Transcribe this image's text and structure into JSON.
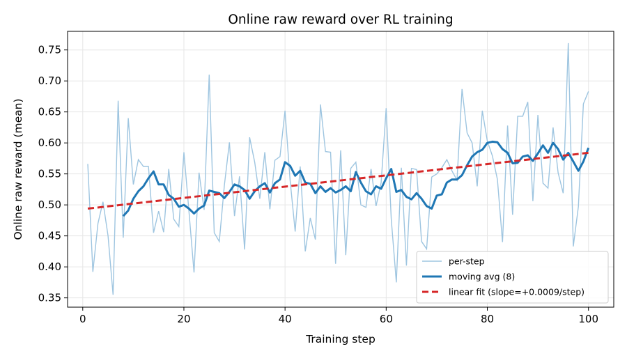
{
  "chart_data": {
    "type": "line",
    "title": "Online raw reward over RL training",
    "xlabel": "Training step",
    "ylabel": "Online raw reward (mean)",
    "xlim": [
      -3,
      105
    ],
    "ylim": [
      0.335,
      0.78
    ],
    "xticks": [
      0,
      20,
      40,
      60,
      80,
      100
    ],
    "yticks": [
      0.35,
      0.4,
      0.45,
      0.5,
      0.55,
      0.6,
      0.65,
      0.7,
      0.75
    ],
    "grid": true,
    "legend_position": "lower-right",
    "colors": {
      "per_step": "#9ec5e0",
      "moving_avg": "#1f77b4",
      "fit": "#d62728"
    },
    "series": [
      {
        "name": "per-step",
        "style": "thin-line",
        "x": [
          1,
          2,
          3,
          4,
          5,
          6,
          7,
          8,
          9,
          10,
          11,
          12,
          13,
          14,
          15,
          16,
          17,
          18,
          19,
          20,
          21,
          22,
          23,
          24,
          25,
          26,
          27,
          28,
          29,
          30,
          31,
          32,
          33,
          34,
          35,
          36,
          37,
          38,
          39,
          40,
          41,
          42,
          43,
          44,
          45,
          46,
          47,
          48,
          49,
          50,
          51,
          52,
          53,
          54,
          55,
          56,
          57,
          58,
          59,
          60,
          61,
          62,
          63,
          64,
          65,
          66,
          67,
          68,
          69,
          70,
          71,
          72,
          73,
          74,
          75,
          76,
          77,
          78,
          79,
          80,
          81,
          82,
          83,
          84,
          85,
          86,
          87,
          88,
          89,
          90,
          91,
          92,
          93,
          94,
          95,
          96,
          97,
          98,
          99,
          100
        ],
        "values": [
          0.566,
          0.392,
          0.47,
          0.505,
          0.45,
          0.355,
          0.668,
          0.447,
          0.64,
          0.533,
          0.573,
          0.562,
          0.562,
          0.455,
          0.49,
          0.456,
          0.558,
          0.477,
          0.465,
          0.585,
          0.49,
          0.391,
          0.552,
          0.492,
          0.71,
          0.455,
          0.441,
          0.531,
          0.601,
          0.482,
          0.546,
          0.428,
          0.609,
          0.569,
          0.51,
          0.585,
          0.493,
          0.572,
          0.578,
          0.652,
          0.54,
          0.457,
          0.562,
          0.425,
          0.479,
          0.444,
          0.662,
          0.586,
          0.585,
          0.405,
          0.588,
          0.419,
          0.559,
          0.569,
          0.5,
          0.496,
          0.558,
          0.498,
          0.536,
          0.656,
          0.477,
          0.375,
          0.56,
          0.402,
          0.559,
          0.557,
          0.441,
          0.429,
          0.545,
          0.55,
          0.56,
          0.573,
          0.555,
          0.54,
          0.687,
          0.616,
          0.6,
          0.53,
          0.652,
          0.603,
          0.579,
          0.541,
          0.44,
          0.628,
          0.484,
          0.643,
          0.643,
          0.666,
          0.506,
          0.645,
          0.535,
          0.527,
          0.625,
          0.552,
          0.519,
          0.761,
          0.433,
          0.497,
          0.663,
          0.683
        ]
      },
      {
        "name": "moving avg (8)",
        "style": "thick-line",
        "x": [
          8,
          9,
          10,
          11,
          12,
          13,
          14,
          15,
          16,
          17,
          18,
          19,
          20,
          21,
          22,
          23,
          24,
          25,
          26,
          27,
          28,
          29,
          30,
          31,
          32,
          33,
          34,
          35,
          36,
          37,
          38,
          39,
          40,
          41,
          42,
          43,
          44,
          45,
          46,
          47,
          48,
          49,
          50,
          51,
          52,
          53,
          54,
          55,
          56,
          57,
          58,
          59,
          60,
          61,
          62,
          63,
          64,
          65,
          66,
          67,
          68,
          69,
          70,
          71,
          72,
          73,
          74,
          75,
          76,
          77,
          78,
          79,
          80,
          81,
          82,
          83,
          84,
          85,
          86,
          87,
          88,
          89,
          90,
          91,
          92,
          93,
          94,
          95,
          96,
          97,
          98,
          99,
          100
        ],
        "values": [
          0.482,
          0.491,
          0.51,
          0.522,
          0.53,
          0.543,
          0.554,
          0.533,
          0.533,
          0.516,
          0.51,
          0.497,
          0.5,
          0.494,
          0.486,
          0.494,
          0.499,
          0.523,
          0.521,
          0.519,
          0.511,
          0.521,
          0.533,
          0.53,
          0.524,
          0.51,
          0.522,
          0.53,
          0.535,
          0.52,
          0.535,
          0.541,
          0.569,
          0.563,
          0.547,
          0.555,
          0.536,
          0.534,
          0.519,
          0.53,
          0.521,
          0.527,
          0.52,
          0.524,
          0.53,
          0.522,
          0.553,
          0.536,
          0.522,
          0.517,
          0.53,
          0.526,
          0.543,
          0.558,
          0.521,
          0.524,
          0.513,
          0.509,
          0.519,
          0.51,
          0.498,
          0.494,
          0.515,
          0.517,
          0.536,
          0.541,
          0.541,
          0.548,
          0.564,
          0.578,
          0.585,
          0.589,
          0.6,
          0.602,
          0.601,
          0.59,
          0.584,
          0.567,
          0.568,
          0.578,
          0.58,
          0.571,
          0.583,
          0.596,
          0.584,
          0.6,
          0.59,
          0.573,
          0.584,
          0.57,
          0.555,
          0.57,
          0.592
        ]
      },
      {
        "name": "linear fit (slope=+0.0009/step)",
        "style": "dashed-line",
        "x": [
          1,
          100
        ],
        "values": [
          0.494,
          0.584
        ]
      }
    ]
  }
}
